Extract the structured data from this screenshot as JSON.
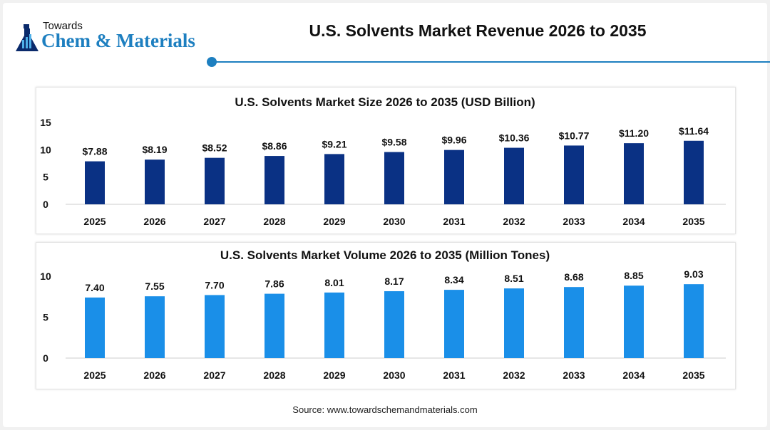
{
  "logo": {
    "line1": "Towards",
    "line2": "Chem & Materials"
  },
  "header": {
    "title": "U.S. Solvents Market Revenue 2026 to 2035"
  },
  "colors": {
    "accent": "#1d7fc0",
    "size_bars": "#0a3184",
    "volume_bars": "#1a8fe8"
  },
  "chart_data": [
    {
      "type": "bar",
      "title": "U.S. Solvents Market Size 2026 to 2035 (USD Billion)",
      "categories": [
        "2025",
        "2026",
        "2027",
        "2028",
        "2029",
        "2030",
        "2031",
        "2032",
        "2033",
        "2034",
        "2035"
      ],
      "values": [
        7.88,
        8.19,
        8.52,
        8.86,
        9.21,
        9.58,
        9.96,
        10.36,
        10.77,
        11.2,
        11.64
      ],
      "labels": [
        "$7.88",
        "$8.19",
        "$8.52",
        "$8.86",
        "$9.21",
        "$9.58",
        "$9.96",
        "$10.36",
        "$10.77",
        "$11.20",
        "$11.64"
      ],
      "yticks": [
        0,
        5,
        10,
        15
      ],
      "ylim": [
        0,
        15
      ],
      "grid": false,
      "color": "#0a3184"
    },
    {
      "type": "bar",
      "title": "U.S. Solvents Market Volume 2026 to 2035 (Million Tones)",
      "categories": [
        "2025",
        "2026",
        "2027",
        "2028",
        "2029",
        "2030",
        "2031",
        "2032",
        "2033",
        "2034",
        "2035"
      ],
      "values": [
        7.4,
        7.55,
        7.7,
        7.86,
        8.01,
        8.17,
        8.34,
        8.51,
        8.68,
        8.85,
        9.03
      ],
      "labels": [
        "7.40",
        "7.55",
        "7.70",
        "7.86",
        "8.01",
        "8.17",
        "8.34",
        "8.51",
        "8.68",
        "8.85",
        "9.03"
      ],
      "yticks": [
        0,
        5,
        10
      ],
      "ylim": [
        0,
        10
      ],
      "grid": false,
      "color": "#1a8fe8"
    }
  ],
  "footer": {
    "source": "Source: www.towardschemandmaterials.com"
  }
}
